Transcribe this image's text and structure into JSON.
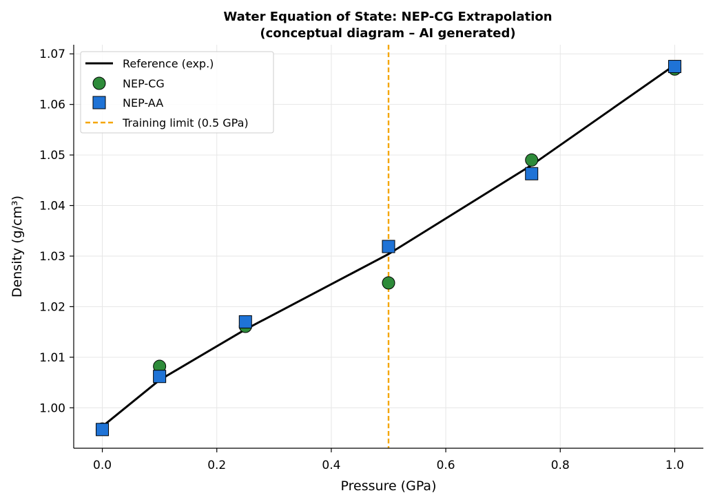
{
  "chart_data": {
    "type": "line",
    "title": "Water Equation of State: NEP-CG Extrapolation",
    "subtitle": "(conceptual diagram – AI generated)",
    "xlabel": "Pressure (GPa)",
    "ylabel": "Density (g/cm³)",
    "xlim": [
      -0.05,
      1.05
    ],
    "ylim": [
      0.992,
      1.0718
    ],
    "xticks": [
      0.0,
      0.2,
      0.4,
      0.6,
      0.8,
      1.0
    ],
    "xtick_labels": [
      "0.0",
      "0.2",
      "0.4",
      "0.6",
      "0.8",
      "1.0"
    ],
    "yticks": [
      1.0,
      1.01,
      1.02,
      1.03,
      1.04,
      1.05,
      1.06,
      1.07
    ],
    "ytick_labels": [
      "1.00",
      "1.01",
      "1.02",
      "1.03",
      "1.04",
      "1.05",
      "1.06",
      "1.07"
    ],
    "grid": true,
    "legend_position": "top-left",
    "series": [
      {
        "name": "Reference (exp.)",
        "kind": "line",
        "color": "#000000",
        "x": [
          0.0,
          0.1,
          0.25,
          0.5,
          0.75,
          1.0
        ],
        "y": [
          0.9963,
          1.0055,
          1.0155,
          1.0304,
          1.048,
          1.0678
        ]
      },
      {
        "name": "NEP-CG",
        "kind": "scatter",
        "marker": "circle",
        "color": "#2e8b3a",
        "x": [
          0.0,
          0.1,
          0.25,
          0.5,
          0.75,
          1.0
        ],
        "y": [
          0.9958,
          1.0082,
          1.0161,
          1.0247,
          1.049,
          1.067
        ]
      },
      {
        "name": "NEP-AA",
        "kind": "scatter",
        "marker": "square",
        "color": "#1f73d6",
        "x": [
          0.0,
          0.1,
          0.25,
          0.5,
          0.75,
          1.0
        ],
        "y": [
          0.9957,
          1.0062,
          1.017,
          1.0319,
          1.0463,
          1.0675
        ]
      }
    ],
    "vlines": [
      {
        "name": "Training limit (0.5 GPa)",
        "x": 0.5,
        "color": "#f5a600",
        "style": "dashed"
      }
    ]
  }
}
